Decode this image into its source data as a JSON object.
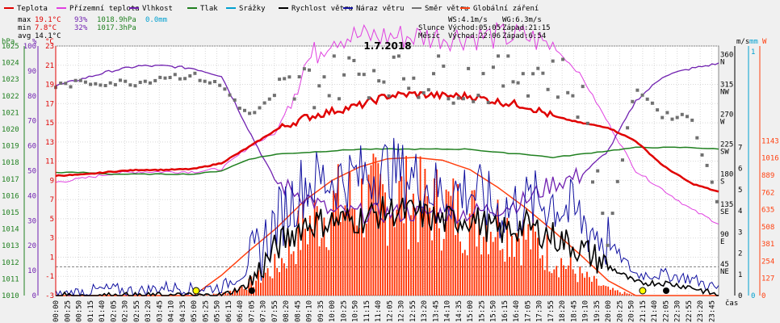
{
  "chart_data": {
    "type": "line",
    "title": "1.7.2018",
    "xlabel": "čas",
    "legend": [
      {
        "name": "Teplota",
        "color": "#e00000"
      },
      {
        "name": "Přízemní teplota",
        "color": "#e040e0"
      },
      {
        "name": "Vlhkost",
        "color": "#7020b0"
      },
      {
        "name": "Tlak",
        "color": "#208020"
      },
      {
        "name": "Srážky",
        "color": "#00a0d0"
      },
      {
        "name": "Rychlost větru",
        "color": "#000000"
      },
      {
        "name": "Náraz větru",
        "color": "#1010a0"
      },
      {
        "name": "Směr větru",
        "color": "#707070"
      },
      {
        "name": "Globální záření",
        "color": "#ff4010"
      }
    ],
    "stats": {
      "max": {
        "label": "max",
        "temp": "19.1°C",
        "hum": "93%",
        "press": "1018.9hPa",
        "rain": "0.0mm"
      },
      "min": {
        "label": "min",
        "temp": "7.8°C",
        "hum": "32%",
        "press": "1017.3hPa"
      },
      "avg": {
        "label": "avg",
        "temp": "14.1°C"
      }
    },
    "info": {
      "ws": "WS:4.1m/s",
      "wg": "WG:6.3m/s",
      "sun_label": "Slunce",
      "sun_rise": "Východ:05:05",
      "sun_set": "Západ:21:15",
      "moon_label": "Měsíc",
      "moon_rise": "Východ:22:06",
      "moon_set": "Západ:6:54"
    },
    "axes": {
      "hpa": {
        "label": "hPa",
        "ticks": [
          "1025",
          "1024",
          "1023",
          "1022",
          "1021",
          "1020",
          "1019",
          "1018",
          "1017",
          "1016",
          "1015",
          "1014",
          "1013",
          "1012",
          "1011",
          "1010"
        ],
        "color": "#208020"
      },
      "pct": {
        "label": "%",
        "ticks": [
          "100",
          "90",
          "80",
          "70",
          "60",
          "50",
          "40",
          "30",
          "20",
          "10",
          "0"
        ],
        "color": "#7020b0"
      },
      "degc": {
        "label": "°C",
        "ticks": [
          "23",
          "21",
          "19",
          "17",
          "15",
          "13",
          "11",
          "9",
          "7",
          "5",
          "3",
          "1",
          "-1",
          "-3"
        ],
        "color": "#e00000"
      },
      "ms": {
        "label": "m/s",
        "ticks": [
          "7",
          "6",
          "5",
          "4",
          "3",
          "2",
          "1",
          "0"
        ],
        "color": "#000000"
      },
      "mm": {
        "label": "mm",
        "ticks": [
          "1",
          "0"
        ],
        "color": "#00a0d0"
      },
      "w": {
        "label": "W",
        "ticks": [
          "1143",
          "1016",
          "889",
          "762",
          "635",
          "508",
          "381",
          "254",
          "127",
          "0"
        ],
        "color": "#ff4010"
      },
      "dir": {
        "ticks": [
          {
            "deg": "360",
            "c": "N"
          },
          {
            "deg": "315",
            "c": "NW"
          },
          {
            "deg": "270",
            "c": "W"
          },
          {
            "deg": "225",
            "c": "SW"
          },
          {
            "deg": "180",
            "c": "S"
          },
          {
            "deg": "135",
            "c": "SE"
          },
          {
            "deg": "90",
            "c": "E"
          },
          {
            "deg": "45",
            "c": "NE"
          }
        ]
      }
    },
    "x_ticks": [
      "00:00",
      "00:25",
      "00:50",
      "01:15",
      "01:40",
      "02:05",
      "02:30",
      "02:55",
      "03:20",
      "03:45",
      "04:10",
      "04:35",
      "05:00",
      "05:25",
      "05:50",
      "06:15",
      "06:40",
      "07:05",
      "07:30",
      "07:55",
      "08:20",
      "08:45",
      "09:10",
      "09:35",
      "10:00",
      "10:25",
      "10:50",
      "11:15",
      "11:40",
      "12:05",
      "12:30",
      "12:55",
      "13:20",
      "13:45",
      "14:10",
      "14:35",
      "15:00",
      "15:25",
      "15:50",
      "16:15",
      "16:40",
      "17:05",
      "17:30",
      "17:55",
      "18:20",
      "18:45",
      "19:10",
      "19:35",
      "20:00",
      "20:25",
      "20:50",
      "21:15",
      "21:40",
      "22:05",
      "22:30",
      "22:55",
      "23:20",
      "23:45"
    ],
    "series_hourly": {
      "hours": [
        0,
        1,
        2,
        3,
        4,
        5,
        6,
        7,
        8,
        9,
        10,
        11,
        12,
        13,
        14,
        15,
        16,
        17,
        18,
        19,
        20,
        21,
        22,
        23,
        24
      ],
      "temperature": [
        9.5,
        9.6,
        9.9,
        10.1,
        10.1,
        10.2,
        10.8,
        12.5,
        14.3,
        15.5,
        16.2,
        16.8,
        17.8,
        18.0,
        17.8,
        17.8,
        17.2,
        16.8,
        15.7,
        15.0,
        14.5,
        13.1,
        10.5,
        8.7,
        7.8
      ],
      "humidity": [
        84,
        87,
        90,
        92,
        92,
        91,
        88,
        66,
        45,
        40,
        33,
        33,
        33,
        33,
        33,
        33,
        35,
        38,
        45,
        48,
        58,
        78,
        88,
        91,
        93
      ],
      "ground_temperature": [
        8.8,
        9.2,
        9.7,
        9.9,
        9.9,
        9.9,
        10.2,
        12.5,
        14.0,
        21.0,
        24.0,
        24.0,
        24.0,
        24.0,
        24.0,
        24.0,
        24.0,
        24.0,
        23.0,
        20.0,
        15.0,
        10.0,
        8.0,
        6.0,
        4.5
      ],
      "pressure": [
        1017.4,
        1017.4,
        1017.3,
        1017.3,
        1017.3,
        1017.3,
        1017.5,
        1018.2,
        1018.5,
        1018.6,
        1018.7,
        1018.8,
        1018.8,
        1018.8,
        1018.8,
        1018.8,
        1018.6,
        1018.5,
        1018.3,
        1018.5,
        1018.7,
        1018.9,
        1018.9,
        1018.9,
        1018.8
      ],
      "wind_speed": [
        0,
        0,
        0,
        0,
        0,
        0,
        0,
        0.5,
        2.3,
        3.4,
        3.5,
        3.6,
        4.0,
        3.9,
        3.5,
        3.7,
        3.0,
        3.3,
        2.8,
        2.2,
        1.4,
        0.6,
        0.6,
        0.4,
        0
      ],
      "wind_gust": [
        0,
        0.2,
        0.3,
        0.2,
        0.4,
        0.3,
        0.4,
        1.2,
        3.5,
        5.3,
        5.5,
        5.6,
        6.0,
        5.5,
        4.8,
        5.0,
        4.0,
        4.3,
        4.5,
        3.6,
        2.5,
        1.0,
        1.0,
        0.8,
        0.3
      ],
      "wind_direction": [
        315,
        320,
        320,
        320,
        330,
        330,
        315,
        270,
        300,
        315,
        330,
        335,
        340,
        330,
        335,
        320,
        330,
        340,
        335,
        300,
        90,
        315,
        270,
        270,
        135
      ],
      "radiation_envelope": [
        0,
        0,
        0,
        0,
        0,
        0,
        150,
        330,
        500,
        700,
        850,
        950,
        1010,
        1020,
        1000,
        930,
        800,
        650,
        480,
        300,
        110,
        0,
        0,
        0,
        0
      ],
      "radiation_actual": [
        0,
        0,
        0,
        0,
        0,
        0,
        20,
        120,
        300,
        700,
        900,
        950,
        1000,
        950,
        900,
        800,
        750,
        600,
        400,
        200,
        60,
        0,
        0,
        0,
        0
      ]
    },
    "markers": {
      "sunrise": "05:05",
      "sunset": "21:15"
    },
    "grid": true
  }
}
